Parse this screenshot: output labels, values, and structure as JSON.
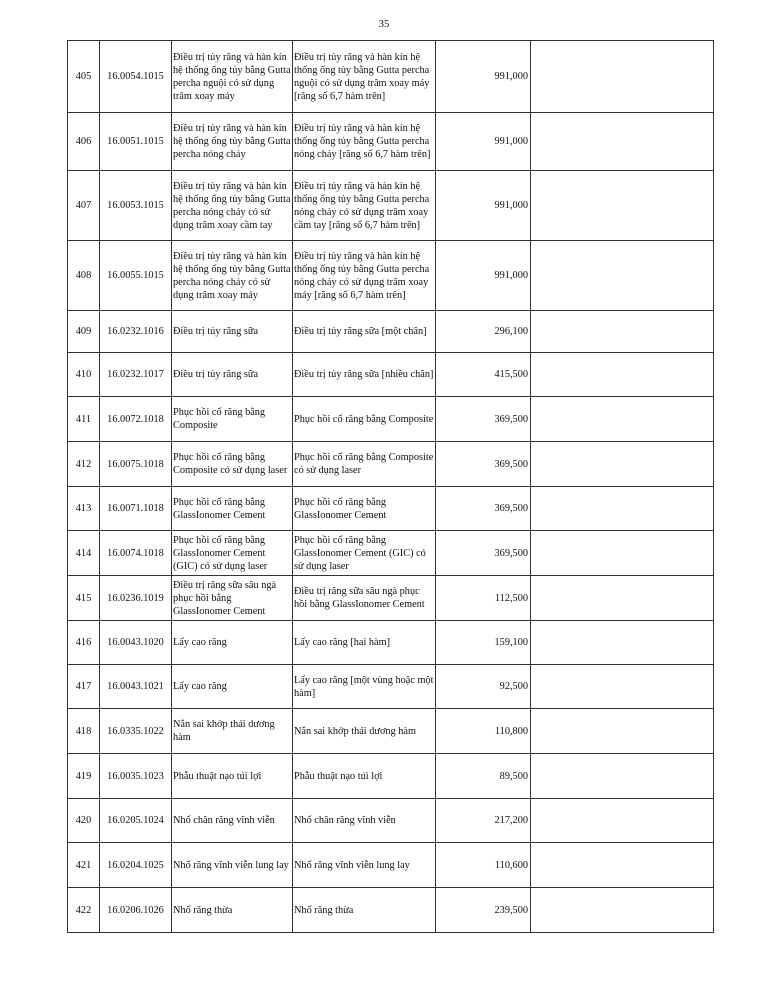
{
  "page_number": "35",
  "rows": [
    {
      "stt": "405",
      "code": "16.0054.1015",
      "name": "Điều trị tủy răng và hàn kín hệ thống ống tủy bằng Gutta percha nguội có sử dụng trâm xoay máy",
      "detail": "Điều trị tủy răng và hàn kín hệ thống ống tủy bằng Gutta percha nguội có sử dụng trâm xoay máy [răng số 6,7 hàm trên]",
      "price": "991,000",
      "note": ""
    },
    {
      "stt": "406",
      "code": "16.0051.1015",
      "name": "Điều trị tủy răng và hàn kín hệ thống ống tủy bằng Gutta percha nóng chảy",
      "detail": "Điều trị tủy răng và hàn kín hệ thống ống tủy bằng Gutta percha nóng chảy [răng số 6,7 hàm trên]",
      "price": "991,000",
      "note": ""
    },
    {
      "stt": "407",
      "code": "16.0053.1015",
      "name": "Điều trị tủy răng và hàn kín hệ thống ống tủy bằng Gutta percha nóng chảy có sử dụng trâm xoay cầm tay",
      "detail": "Điều trị tủy răng và hàn kín hệ thống ống tủy bằng Gutta percha nóng chảy có sử dụng trâm xoay cầm tay [răng số 6,7 hàm trên]",
      "price": "991,000",
      "note": ""
    },
    {
      "stt": "408",
      "code": "16.0055.1015",
      "name": "Điều trị tủy răng và hàn kín hệ thống ống tủy bằng Gutta percha nóng chảy có sử dụng trâm xoay máy",
      "detail": "Điều trị tủy răng và hàn kín hệ thống ống tủy bằng Gutta percha nóng chảy có sử dụng trâm xoay máy [răng số 6,7 hàm trên]",
      "price": "991,000",
      "note": ""
    },
    {
      "stt": "409",
      "code": "16.0232.1016",
      "name": "Điều trị tủy răng sữa",
      "detail": "Điều trị tủy răng sữa [một chân]",
      "price": "296,100",
      "note": ""
    },
    {
      "stt": "410",
      "code": "16.0232.1017",
      "name": "Điều trị tủy răng sữa",
      "detail": "Điều trị tủy răng sữa [nhiều chân]",
      "price": "415,500",
      "note": ""
    },
    {
      "stt": "411",
      "code": "16.0072.1018",
      "name": "Phục hồi cổ răng bằng Composite",
      "detail": "Phục hồi cổ răng bằng Composite",
      "price": "369,500",
      "note": ""
    },
    {
      "stt": "412",
      "code": "16.0075.1018",
      "name": "Phục hồi cổ răng bằng Composite có sử dụng laser",
      "detail": "Phục hồi cổ răng bằng Composite có sử dụng laser",
      "price": "369,500",
      "note": ""
    },
    {
      "stt": "413",
      "code": "16.0071.1018",
      "name": "Phục hồi cổ răng bằng GlassIonomer Cement",
      "detail": "Phục hồi cổ răng bằng GlassIonomer Cement",
      "price": "369,500",
      "note": ""
    },
    {
      "stt": "414",
      "code": "16.0074.1018",
      "name": "Phục hồi cổ răng bằng GlassIonomer Cement (GIC) có sử dụng laser",
      "detail": "Phục hồi cổ răng bằng GlassIonomer Cement (GIC) có sử dụng laser",
      "price": "369,500",
      "note": ""
    },
    {
      "stt": "415",
      "code": "16.0236.1019",
      "name": "Điều trị răng sữa sâu ngà phục hồi bằng GlassIonomer Cement",
      "detail": "Điều trị răng sữa sâu ngà phục hồi bằng GlassIonomer Cement",
      "price": "112,500",
      "note": ""
    },
    {
      "stt": "416",
      "code": "16.0043.1020",
      "name": "Lấy cao răng",
      "detail": "Lấy cao răng [hai hàm]",
      "price": "159,100",
      "note": ""
    },
    {
      "stt": "417",
      "code": "16.0043.1021",
      "name": "Lấy cao răng",
      "detail": "Lấy cao răng [một vùng hoặc một hàm]",
      "price": "92,500",
      "note": ""
    },
    {
      "stt": "418",
      "code": "16.0335.1022",
      "name": "Nắn sai khớp thái dương hàm",
      "detail": "Nắn sai khớp thái dương hàm",
      "price": "110,800",
      "note": ""
    },
    {
      "stt": "419",
      "code": "16.0035.1023",
      "name": "Phẫu thuật nạo túi lợi",
      "detail": "Phẫu thuật nạo túi lợi",
      "price": "89,500",
      "note": ""
    },
    {
      "stt": "420",
      "code": "16.0205.1024",
      "name": "Nhổ chân răng vĩnh viễn",
      "detail": "Nhổ chân răng vĩnh viễn",
      "price": "217,200",
      "note": ""
    },
    {
      "stt": "421",
      "code": "16.0204.1025",
      "name": "Nhổ răng vĩnh viễn lung lay",
      "detail": "Nhổ răng vĩnh viễn lung lay",
      "price": "110,600",
      "note": ""
    },
    {
      "stt": "422",
      "code": "16.0206.1026",
      "name": "Nhổ răng thừa",
      "detail": "Nhổ răng thừa",
      "price": "239,500",
      "note": ""
    }
  ]
}
